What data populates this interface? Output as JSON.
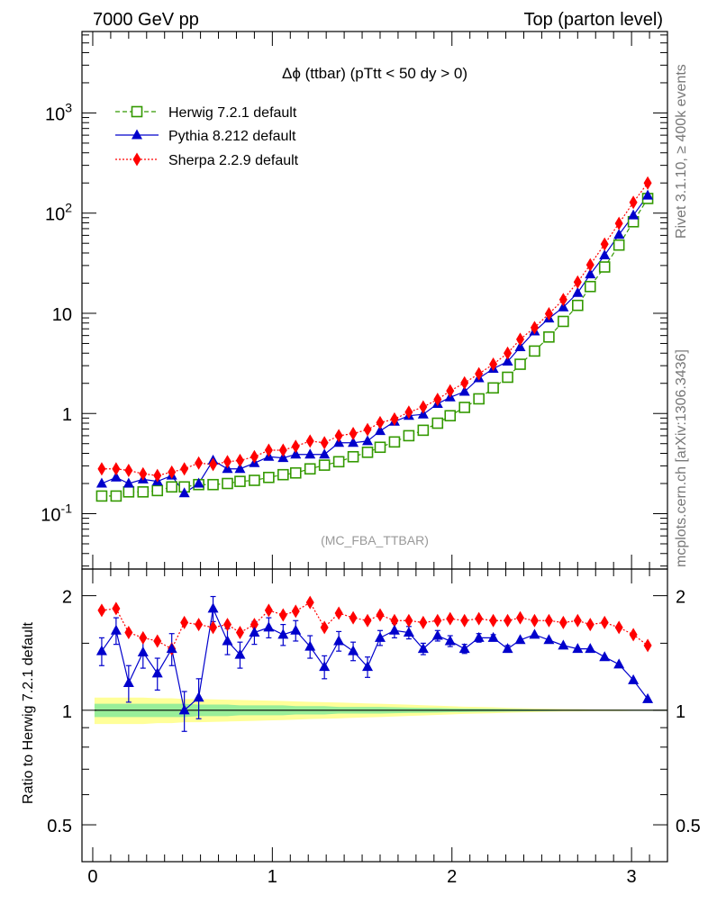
{
  "header": {
    "left": "7000 GeV pp",
    "right": "Top (parton level)"
  },
  "side_labels": {
    "rivet": "Rivet 3.1.10, ≥ 400k events",
    "mcplots": "mcplots.cern.ch [arXiv:1306.3436]"
  },
  "chart_data": {
    "type": "line",
    "title": "Δϕ (ttbar) (pTtt < 50 dy > 0)",
    "analysis_tag": "(MC_FBA_TTBAR)",
    "log_y": true,
    "ylim_main": [
      0.028,
      6500
    ],
    "ylim_ratio": [
      0.4,
      2.35
    ],
    "xlim": [
      -0.06,
      3.2
    ],
    "ratio_ylabel": "Ratio to Herwig 7.2.1 default",
    "x_ticks": [
      "0",
      "1",
      "2",
      "3"
    ],
    "y_ticks_main": [
      "10^-1",
      "1",
      "10",
      "10^2",
      "10^3"
    ],
    "y_ticks_ratio": [
      "0.5",
      "1",
      "2"
    ],
    "grid": false,
    "legend_position": "top-left",
    "x": [
      0.05,
      0.13,
      0.2,
      0.28,
      0.36,
      0.44,
      0.51,
      0.59,
      0.67,
      0.75,
      0.82,
      0.9,
      0.98,
      1.06,
      1.13,
      1.21,
      1.29,
      1.37,
      1.45,
      1.53,
      1.6,
      1.68,
      1.76,
      1.84,
      1.92,
      1.99,
      2.07,
      2.15,
      2.23,
      2.31,
      2.38,
      2.46,
      2.54,
      2.62,
      2.7,
      2.77,
      2.85,
      2.93,
      3.01,
      3.09
    ],
    "series": [
      {
        "name": "Herwig 7.2.1 default",
        "color": "#339900",
        "marker": "open-square",
        "line": "dashed",
        "values": [
          0.15,
          0.15,
          0.165,
          0.165,
          0.17,
          0.185,
          0.185,
          0.195,
          0.195,
          0.2,
          0.21,
          0.215,
          0.23,
          0.245,
          0.255,
          0.28,
          0.305,
          0.33,
          0.37,
          0.41,
          0.46,
          0.52,
          0.6,
          0.68,
          0.8,
          0.95,
          1.15,
          1.4,
          1.8,
          2.3,
          3.1,
          4.2,
          5.8,
          8.3,
          12,
          18.5,
          29,
          48,
          82,
          140
        ]
      },
      {
        "name": "Pythia 8.212 default",
        "color": "#0000cc",
        "marker": "filled-triangle",
        "line": "solid",
        "values": [
          0.2,
          0.23,
          0.2,
          0.22,
          0.21,
          0.24,
          0.16,
          0.2,
          0.34,
          0.28,
          0.28,
          0.32,
          0.37,
          0.36,
          0.39,
          0.39,
          0.39,
          0.51,
          0.51,
          0.53,
          0.67,
          0.83,
          0.95,
          0.98,
          1.25,
          1.45,
          1.65,
          2.25,
          2.8,
          3.3,
          4.6,
          6.6,
          8.9,
          11.5,
          16,
          24.5,
          38,
          61,
          95,
          150
        ]
      },
      {
        "name": "Sherpa 2.2.9 default",
        "color": "#ff0000",
        "marker": "filled-diamond",
        "line": "dotted",
        "values": [
          0.28,
          0.28,
          0.27,
          0.25,
          0.24,
          0.26,
          0.28,
          0.32,
          0.31,
          0.33,
          0.34,
          0.37,
          0.43,
          0.43,
          0.47,
          0.53,
          0.51,
          0.6,
          0.63,
          0.69,
          0.81,
          0.88,
          1.03,
          1.16,
          1.38,
          1.68,
          2.02,
          2.49,
          3.1,
          4.0,
          5.5,
          7.2,
          9.9,
          13.7,
          20.5,
          30.5,
          49,
          79,
          128,
          200
        ]
      }
    ],
    "ratio": {
      "pythia": [
        1.43,
        1.62,
        1.18,
        1.42,
        1.25,
        1.45,
        1.0,
        1.08,
        1.85,
        1.52,
        1.4,
        1.6,
        1.65,
        1.58,
        1.62,
        1.47,
        1.3,
        1.52,
        1.43,
        1.3,
        1.55,
        1.62,
        1.6,
        1.45,
        1.57,
        1.52,
        1.45,
        1.55,
        1.55,
        1.45,
        1.53,
        1.58,
        1.53,
        1.48,
        1.45,
        1.45,
        1.38,
        1.32,
        1.2,
        1.07
      ],
      "pythia_err": [
        0.12,
        0.13,
        0.13,
        0.13,
        0.12,
        0.14,
        0.12,
        0.13,
        0.14,
        0.12,
        0.11,
        0.11,
        0.1,
        0.1,
        0.1,
        0.1,
        0.09,
        0.09,
        0.08,
        0.08,
        0.07,
        0.07,
        0.06,
        0.05,
        0.05,
        0.05,
        0.04,
        0.04,
        0.03,
        0.03,
        0.02,
        0.02,
        0.02,
        0.01,
        0.01,
        0.01,
        0.01,
        0.01,
        0.01,
        0.01
      ],
      "sherpa": [
        1.83,
        1.85,
        1.6,
        1.55,
        1.52,
        1.45,
        1.7,
        1.68,
        1.65,
        1.68,
        1.6,
        1.68,
        1.83,
        1.78,
        1.82,
        1.92,
        1.65,
        1.8,
        1.75,
        1.72,
        1.78,
        1.72,
        1.72,
        1.7,
        1.72,
        1.74,
        1.72,
        1.74,
        1.72,
        1.72,
        1.75,
        1.72,
        1.72,
        1.7,
        1.72,
        1.68,
        1.7,
        1.65,
        1.58,
        1.48
      ],
      "sherpa_err": [
        0.06,
        0.06,
        0.05,
        0.05,
        0.05,
        0.05,
        0.05,
        0.05,
        0.05,
        0.05,
        0.04,
        0.04,
        0.04,
        0.04,
        0.04,
        0.04,
        0.03,
        0.03,
        0.03,
        0.03,
        0.03,
        0.02,
        0.02,
        0.02,
        0.02,
        0.02,
        0.02,
        0.01,
        0.01,
        0.01,
        0.01,
        0.01,
        0.01,
        0.01,
        0.01,
        0.01,
        0.01,
        0.01,
        0.01,
        0.01
      ],
      "band_inner": [
        0.04,
        0.04,
        0.04,
        0.04,
        0.04,
        0.04,
        0.04,
        0.035,
        0.035,
        0.035,
        0.03,
        0.03,
        0.03,
        0.03,
        0.025,
        0.025,
        0.025,
        0.02,
        0.02,
        0.02,
        0.02,
        0.018,
        0.016,
        0.015,
        0.014,
        0.012,
        0.011,
        0.01,
        0.009,
        0.008,
        0.007,
        0.006,
        0.005,
        0.004,
        0.004,
        0.003,
        0.003,
        0.003,
        0.003,
        0.003
      ],
      "band_outer": [
        0.08,
        0.08,
        0.08,
        0.08,
        0.075,
        0.075,
        0.07,
        0.07,
        0.068,
        0.066,
        0.064,
        0.062,
        0.06,
        0.058,
        0.055,
        0.052,
        0.05,
        0.048,
        0.045,
        0.042,
        0.04,
        0.037,
        0.034,
        0.031,
        0.028,
        0.025,
        0.022,
        0.02,
        0.018,
        0.015,
        0.013,
        0.011,
        0.009,
        0.008,
        0.007,
        0.006,
        0.005,
        0.005,
        0.004,
        0.004
      ]
    }
  }
}
